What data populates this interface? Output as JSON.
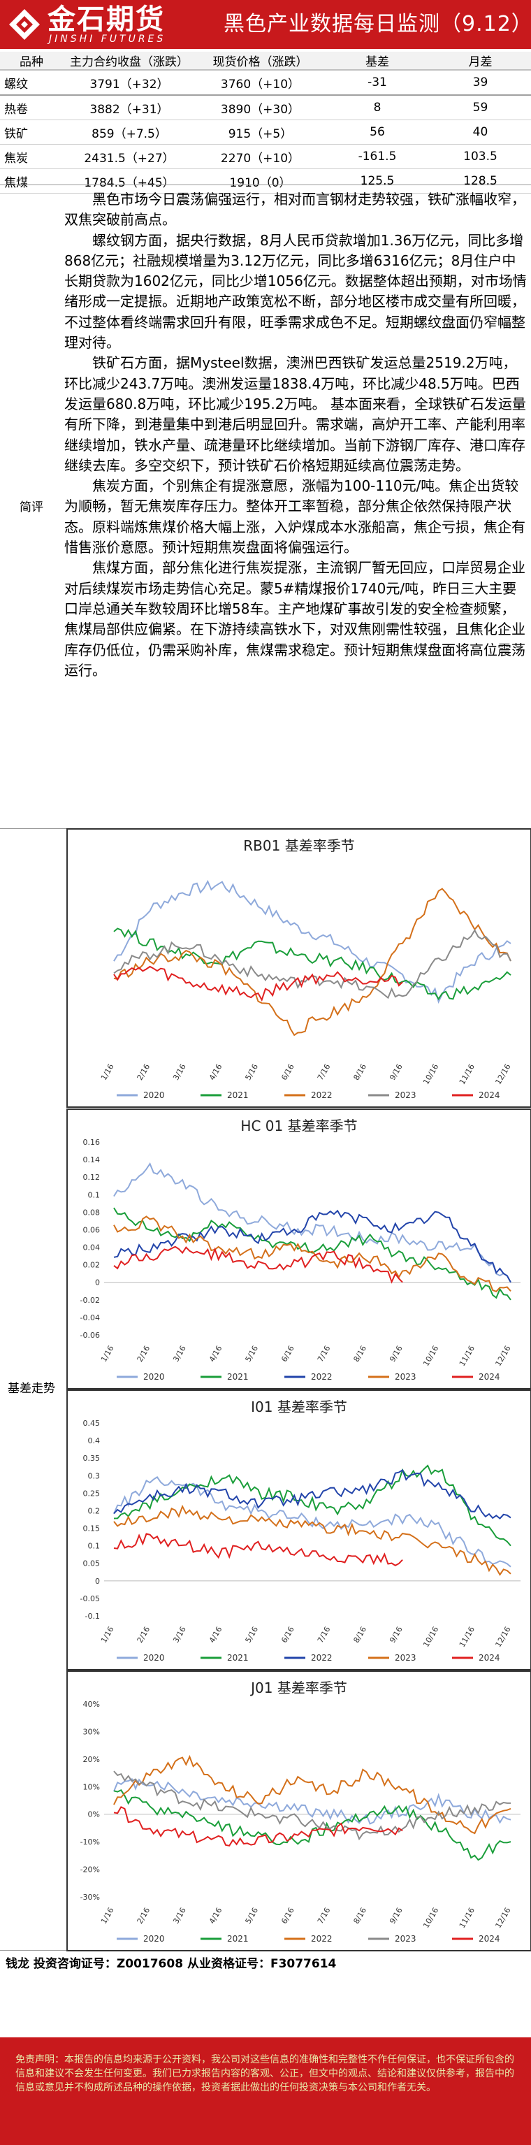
{
  "header": {
    "logo_cn": "金石期货",
    "logo_en": "JINSHI FUTURES",
    "title": "黑色产业数据每日监测（9.12）"
  },
  "table": {
    "headers": [
      "品种",
      "主力合约收盘（涨跌）",
      "现货价格（涨跌）",
      "基差",
      "月差"
    ],
    "rows": [
      {
        "name": "螺纹",
        "close": "3791（+32）",
        "spot": "3760（+10）",
        "basis": "-31",
        "spread": "39"
      },
      {
        "name": "热卷",
        "close": "3882（+31）",
        "spot": "3890（+30）",
        "basis": "8",
        "spread": "59"
      },
      {
        "name": "铁矿",
        "close": "859（+7.5）",
        "spot": "915（+5）",
        "basis": "56",
        "spread": "40"
      },
      {
        "name": "焦炭",
        "close": "2431.5（+27）",
        "spot": "2270（+10）",
        "basis": "-161.5",
        "spread": "103.5"
      },
      {
        "name": "焦煤",
        "close": "1784.5（+45）",
        "spot": "1910（0）",
        "basis": "125.5",
        "spread": "128.5"
      }
    ]
  },
  "commentary": {
    "label": "简评",
    "paragraphs": [
      "黑色市场今日震荡偏强运行，相对而言钢材走势较强，铁矿涨幅收窄，双焦突破前高点。",
      "螺纹钢方面，据央行数据，8月人民币贷款增加1.36万亿元，同比多增868亿元；社融规模增量为3.12万亿元，同比多增6316亿元；8月住户中长期贷款为1602亿元，同比少增1056亿元。数据整体超出预期，对市场情绪形成一定提振。近期地产政策宽松不断，部分地区楼市成交量有所回暖，不过整体看终端需求回升有限，旺季需求成色不足。短期螺纹盘面仍窄幅整理对待。",
      "铁矿石方面，据Mysteel数据，澳洲巴西铁矿发运总量2519.2万吨，环比减少243.7万吨。澳洲发运量1838.4万吨，环比减少48.5万吨。巴西发运量680.8万吨，环比减少195.2万吨。 基本面来看，全球铁矿石发运量有所下降，到港量集中到港后明显回升。需求端，高炉开工率、产能利用率继续增加，铁水产量、疏港量环比继续增加。当前下游钢厂库存、港口库存继续去库。多空交织下，预计铁矿石价格短期延续高位震荡走势。",
      "焦炭方面，个别焦企有提涨意愿，涨幅为100-110元/吨。焦企出货较为顺畅，暂无焦炭库存压力。整体开工率暂稳，部分焦企依然保持限产状态。原料端炼焦煤价格大幅上涨，入炉煤成本水涨船高，焦企亏损，焦企有惜售涨价意愿。预计短期焦炭盘面将偏强运行。",
      "焦煤方面，部分焦化进行焦炭提涨，主流钢厂暂无回应，口岸贸易企业对后续煤炭市场走势信心充足。蒙5#精煤报价1740元/吨，昨日三大主要口岸总通关车数较周环比增58车。主产地煤矿事故引发的安全检查频繁，焦煤局部供应偏紧。在下游持续高铁水下，对双焦刚需性较强，且焦化企业库存仍低位，仍需采购补库，焦煤需求稳定。预计短期焦煤盘面将高位震荡运行。"
    ]
  },
  "charts_label": "基差走势",
  "charts": [
    {
      "title": "RB01 基差率季节",
      "yticks": [],
      "series_colors": [
        "#8ea9db",
        "#1a9e3a",
        "#d4701a",
        "#8a8a8a",
        "#e02020"
      ]
    },
    {
      "title": "HC 01 基差率季节",
      "yticks": [
        "0.16",
        "0.14",
        "0.12",
        "0.1",
        "0.08",
        "0.06",
        "0.04",
        "0.02",
        "0",
        "-0.02",
        "-0.04",
        "-0.06"
      ],
      "series_colors": [
        "#8ea9db",
        "#1a9e3a",
        "#2244aa",
        "#d4701a",
        "#e02020"
      ]
    },
    {
      "title": "I01 基差率季节",
      "yticks": [
        "0.45",
        "0.4",
        "0.35",
        "0.3",
        "0.25",
        "0.2",
        "0.15",
        "0.1",
        "0.05",
        "0",
        "-0.05",
        "-0.1"
      ],
      "series_colors": [
        "#8ea9db",
        "#1a9e3a",
        "#2244aa",
        "#d4701a",
        "#e02020"
      ]
    },
    {
      "title": "J01 基差率季节",
      "yticks": [
        "40%",
        "30%",
        "20%",
        "10%",
        "0%",
        "-10%",
        "-20%",
        "-30%"
      ],
      "series_colors": [
        "#8ea9db",
        "#1a9e3a",
        "#d4701a",
        "#8a8a8a",
        "#e02020"
      ]
    }
  ],
  "chart_data": [
    {
      "type": "line",
      "title": "RB01 基差率季节",
      "x": [
        "1/16",
        "2/16",
        "3/16",
        "4/16",
        "5/16",
        "6/16",
        "7/16",
        "8/16",
        "9/16",
        "10/16",
        "11/16",
        "12/16"
      ],
      "series": [
        {
          "name": "2020",
          "values": [
            0.4,
            0.55,
            0.6,
            0.62,
            0.56,
            0.5,
            0.46,
            0.4,
            0.36,
            0.3,
            0.4,
            0.45
          ]
        },
        {
          "name": "2021",
          "values": [
            0.5,
            0.45,
            0.42,
            0.4,
            0.45,
            0.42,
            0.4,
            0.38,
            0.34,
            0.3,
            0.32,
            0.36
          ]
        },
        {
          "name": "2022",
          "values": [
            0.35,
            0.4,
            0.42,
            0.38,
            0.3,
            0.2,
            0.25,
            0.3,
            0.45,
            0.6,
            0.5,
            0.4
          ]
        },
        {
          "name": "2023",
          "values": [
            0.38,
            0.42,
            0.45,
            0.4,
            0.36,
            0.34,
            0.35,
            0.32,
            0.3,
            0.4,
            0.48,
            0.4
          ]
        },
        {
          "name": "2024",
          "values": [
            0.36,
            0.38,
            0.34,
            0.32,
            0.3,
            0.34,
            0.36,
            0.35,
            0.34,
            null,
            null,
            null
          ]
        }
      ]
    },
    {
      "type": "line",
      "title": "HC 01 基差率季节",
      "x": [
        "1/16",
        "2/16",
        "3/16",
        "4/16",
        "5/16",
        "6/16",
        "7/16",
        "8/16",
        "9/16",
        "10/16",
        "11/16",
        "12/16"
      ],
      "ylim": [
        -0.06,
        0.16
      ],
      "series": [
        {
          "name": "2020",
          "values": [
            0.1,
            0.13,
            0.11,
            0.08,
            0.07,
            0.06,
            0.06,
            0.05,
            0.05,
            0.04,
            0.04,
            0.0
          ]
        },
        {
          "name": "2021",
          "values": [
            0.08,
            0.06,
            0.05,
            0.07,
            0.05,
            0.04,
            0.04,
            0.05,
            0.03,
            0.02,
            0.0,
            -0.02
          ]
        },
        {
          "name": "2022",
          "values": [
            0.03,
            0.04,
            0.05,
            0.06,
            0.05,
            0.06,
            0.08,
            0.07,
            0.06,
            0.08,
            0.04,
            0.0
          ]
        },
        {
          "name": "2023",
          "values": [
            0.06,
            0.07,
            0.05,
            0.04,
            0.03,
            0.04,
            0.02,
            0.03,
            0.01,
            0.03,
            0.0,
            -0.01
          ]
        },
        {
          "name": "2024",
          "values": [
            0.02,
            0.03,
            0.04,
            0.03,
            0.02,
            0.02,
            0.03,
            0.02,
            0.0,
            null,
            null,
            null
          ]
        }
      ]
    },
    {
      "type": "line",
      "title": "I01 基差率季节",
      "x": [
        "1/16",
        "2/16",
        "3/16",
        "4/16",
        "5/16",
        "6/16",
        "7/16",
        "8/16",
        "9/16",
        "10/16",
        "11/16",
        "12/16"
      ],
      "ylim": [
        -0.1,
        0.45
      ],
      "series": [
        {
          "name": "2020",
          "values": [
            0.2,
            0.28,
            0.28,
            0.22,
            0.2,
            0.18,
            0.16,
            0.16,
            0.18,
            0.15,
            0.08,
            0.04
          ]
        },
        {
          "name": "2021",
          "values": [
            0.17,
            0.22,
            0.26,
            0.3,
            0.25,
            0.24,
            0.2,
            0.22,
            0.3,
            0.32,
            0.17,
            0.1
          ]
        },
        {
          "name": "2022",
          "values": [
            0.2,
            0.24,
            0.26,
            0.25,
            0.22,
            0.23,
            0.25,
            0.26,
            0.3,
            0.28,
            0.2,
            0.18
          ]
        },
        {
          "name": "2023",
          "values": [
            0.16,
            0.18,
            0.2,
            0.18,
            0.17,
            0.16,
            0.15,
            0.14,
            0.12,
            0.1,
            0.06,
            0.02
          ]
        },
        {
          "name": "2024",
          "values": [
            0.1,
            0.12,
            0.1,
            0.08,
            0.1,
            0.08,
            0.07,
            0.06,
            0.06,
            null,
            null,
            null
          ]
        }
      ]
    },
    {
      "type": "line",
      "title": "J01 基差率季节",
      "x": [
        "1/16",
        "2/16",
        "3/16",
        "4/16",
        "5/16",
        "6/16",
        "7/16",
        "8/16",
        "9/16",
        "10/16",
        "11/16",
        "12/16"
      ],
      "ylim": [
        -0.3,
        0.4
      ],
      "series": [
        {
          "name": "2020",
          "values": [
            0.1,
            0.12,
            0.08,
            0.05,
            0.04,
            0.02,
            0.0,
            -0.02,
            0.01,
            0.05,
            0.0,
            -0.02
          ]
        },
        {
          "name": "2021",
          "values": [
            0.08,
            0.02,
            0.0,
            -0.05,
            -0.08,
            -0.1,
            -0.05,
            0.0,
            0.02,
            -0.05,
            -0.15,
            -0.1
          ]
        },
        {
          "name": "2022",
          "values": [
            0.05,
            0.15,
            0.2,
            0.1,
            0.05,
            0.12,
            0.08,
            0.15,
            0.1,
            0.0,
            -0.05,
            0.02
          ]
        },
        {
          "name": "2023",
          "values": [
            0.15,
            0.1,
            0.05,
            0.02,
            0.0,
            -0.02,
            -0.05,
            -0.08,
            -0.04,
            0.0,
            0.02,
            0.04
          ]
        },
        {
          "name": "2024",
          "values": [
            0.02,
            -0.05,
            -0.08,
            -0.1,
            -0.1,
            -0.08,
            -0.06,
            -0.04,
            -0.06,
            null,
            null,
            null
          ]
        }
      ]
    }
  ],
  "footer": {
    "analyst": "钱龙  投资咨询证号：Z0017608  从业资格证号：F3077614",
    "disclaimer": "免责声明：本报告的信息均来源于公开资料，我公司对这些信息的准确性和完整性不作任何保证，也不保证所包含的信息和建议不会发生任何变更。我们已力求报告内容的客观、公正，但文中的观点、结论和建议仅供参考，报告中的信息或意见并不构成所述品种的操作依据，投资者据此做出的任何投资决策与本公司和作者无关。"
  }
}
